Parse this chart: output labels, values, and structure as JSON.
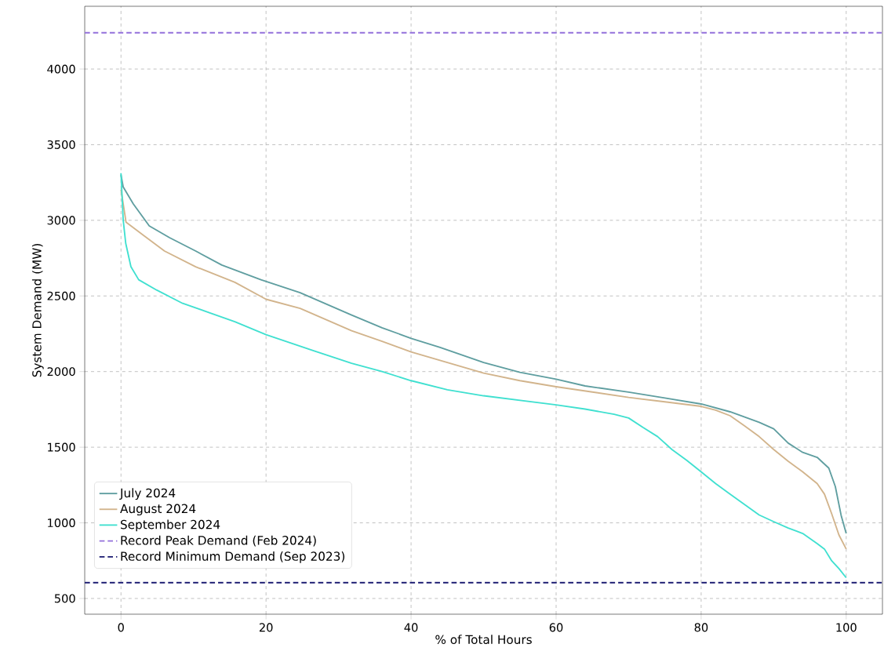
{
  "chart_data": {
    "type": "line",
    "xlabel": "% of Total Hours",
    "ylabel": "System Demand (MW)",
    "xlim": [
      -5,
      105
    ],
    "ylim": [
      396,
      4415
    ],
    "xticks": [
      0,
      20,
      40,
      60,
      80,
      100
    ],
    "yticks": [
      500,
      1000,
      1500,
      2000,
      2500,
      3000,
      3500,
      4000
    ],
    "grid": true,
    "legend": "bottom left",
    "line_style": "solid",
    "series": [
      {
        "name": "July 2024",
        "color": "#5f9ea0",
        "x": [
          0,
          0.3,
          1.7,
          3.9,
          6.7,
          10.3,
          13.9,
          19.3,
          24.7,
          31.8,
          36,
          40,
          44,
          50,
          55,
          60,
          64,
          70,
          75,
          80,
          84,
          86,
          88,
          90,
          92,
          94,
          96,
          97.6,
          98.5,
          99.3,
          100
        ],
        "values": [
          3300,
          3221,
          3108,
          2963,
          2885,
          2797,
          2704,
          2607,
          2522,
          2374,
          2290,
          2220,
          2160,
          2060,
          1995,
          1950,
          1905,
          1864,
          1825,
          1786,
          1734,
          1700,
          1665,
          1622,
          1527,
          1466,
          1433,
          1362,
          1240,
          1050,
          930
        ]
      },
      {
        "name": "August 2024",
        "color": "#d2b48c",
        "x": [
          0,
          0.7,
          3.1,
          6,
          10.3,
          15.7,
          20,
          24.7,
          31.8,
          36,
          40,
          45,
          50,
          55,
          60,
          65,
          70,
          75,
          80,
          82,
          84,
          86,
          88,
          90,
          92,
          94,
          96,
          97,
          98,
          99,
          100
        ],
        "values": [
          3203,
          2987,
          2901,
          2797,
          2693,
          2590,
          2478,
          2418,
          2270,
          2200,
          2130,
          2060,
          1990,
          1940,
          1900,
          1865,
          1829,
          1800,
          1770,
          1745,
          1708,
          1640,
          1570,
          1485,
          1407,
          1337,
          1259,
          1190,
          1060,
          920,
          827
        ]
      },
      {
        "name": "September 2024",
        "color": "#40e0d0",
        "x": [
          0,
          0.3,
          0.65,
          1.37,
          2.44,
          4.95,
          8.5,
          12.1,
          15.7,
          20,
          26.4,
          31.8,
          36,
          40,
          45,
          50,
          55,
          60,
          64,
          68,
          70,
          72,
          74,
          76,
          78,
          80,
          82,
          84,
          86,
          88,
          90,
          92,
          94,
          96,
          97,
          98,
          99,
          100
        ],
        "values": [
          3312,
          3004,
          2849,
          2693,
          2607,
          2538,
          2451,
          2391,
          2330,
          2244,
          2140,
          2055,
          2000,
          1940,
          1880,
          1840,
          1810,
          1780,
          1752,
          1718,
          1693,
          1630,
          1570,
          1484,
          1414,
          1337,
          1259,
          1190,
          1121,
          1052,
          1008,
          966,
          930,
          863,
          827,
          749,
          697,
          637
        ]
      }
    ],
    "ref_lines": [
      {
        "axis": "y",
        "value": 4240,
        "label": "Record Peak Demand (Feb 2024)",
        "color": "#9370db",
        "line_style": "dashed"
      },
      {
        "axis": "y",
        "value": 605,
        "label": "Record Minimum Demand (Sep 2023)",
        "color": "#191970",
        "line_style": "dashed"
      }
    ]
  }
}
